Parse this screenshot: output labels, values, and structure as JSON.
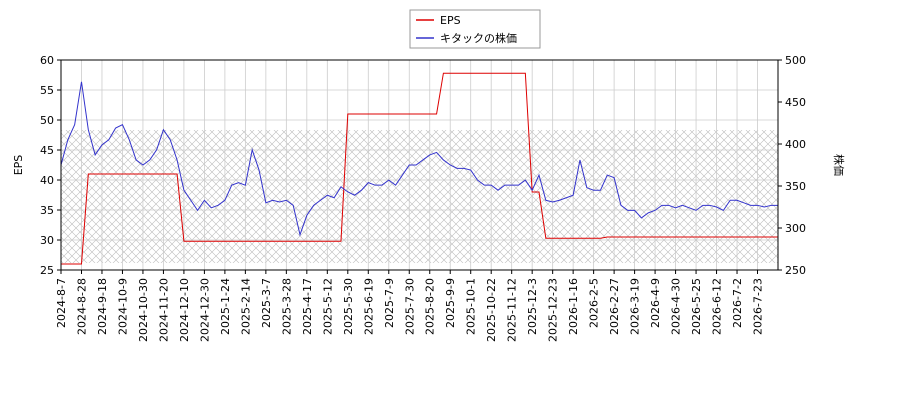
{
  "chart_data": {
    "type": "line",
    "ylabel": "EPS",
    "y2label": "株価",
    "categories": [
      "2024-8-7",
      null,
      null,
      "2024-8-28",
      null,
      null,
      "2024-9-18",
      null,
      null,
      "2024-10-9",
      null,
      null,
      "2024-10-30",
      null,
      null,
      "2024-11-20",
      null,
      null,
      "2024-12-10",
      null,
      null,
      "2024-12-30",
      null,
      null,
      "2025-1-24",
      null,
      null,
      "2025-2-14",
      null,
      null,
      "2025-3-7",
      null,
      null,
      "2025-3-28",
      null,
      null,
      "2025-4-17",
      null,
      null,
      "2025-5-12",
      null,
      null,
      "2025-5-30",
      null,
      null,
      "2025-6-19",
      null,
      null,
      "2025-7-9",
      null,
      null,
      "2025-7-30",
      null,
      null,
      "2025-8-20",
      null,
      null,
      "2025-9-9",
      null,
      null,
      "2025-10-1",
      null,
      null,
      "2025-10-22",
      null,
      null,
      "2025-11-12",
      null,
      null,
      "2025-12-3",
      null,
      null,
      "2025-12-23",
      null,
      null,
      "2026-1-16",
      null,
      null,
      "2026-2-5",
      null,
      null,
      "2026-2-27",
      null,
      null,
      "2026-3-19",
      null,
      null,
      "2026-4-9",
      null,
      null,
      "2026-4-30",
      null,
      null,
      "2026-5-25",
      null,
      null,
      "2026-6-12",
      null,
      null,
      "2026-7-2",
      null,
      null,
      "2026-7-23",
      null,
      null,
      null
    ],
    "series": [
      {
        "name": "EPS",
        "color": "#dd0000",
        "values": [
          26,
          26,
          26,
          26,
          41,
          41,
          41,
          41,
          41,
          41,
          41,
          41,
          41,
          41,
          41,
          41,
          41,
          41,
          29.8,
          29.8,
          29.8,
          29.8,
          29.8,
          29.8,
          29.8,
          29.8,
          29.8,
          29.8,
          29.8,
          29.8,
          29.8,
          29.8,
          29.8,
          29.8,
          29.8,
          29.8,
          29.8,
          29.8,
          29.8,
          29.8,
          29.8,
          29.8,
          51,
          51,
          51,
          51,
          51,
          51,
          51,
          51,
          51,
          51,
          51,
          51,
          51,
          51,
          57.8,
          57.8,
          57.8,
          57.8,
          57.8,
          57.8,
          57.8,
          57.8,
          57.8,
          57.8,
          57.8,
          57.8,
          57.8,
          38,
          38,
          30.3,
          30.3,
          30.3,
          30.3,
          30.3,
          30.3,
          30.3,
          30.3,
          30.3,
          30.5,
          30.5,
          30.5,
          30.5,
          30.5,
          30.5,
          30.5,
          30.5,
          30.5,
          30.5,
          30.5,
          30.5,
          30.5,
          30.5,
          30.5,
          30.5,
          30.5,
          30.5,
          30.5,
          30.5,
          30.5,
          30.5,
          30.5,
          30.5,
          30.5,
          30.5
        ]
      },
      {
        "name": "キタックの株価",
        "color": "#3333cc",
        "axis": "y2",
        "values": [
          375,
          405,
          423,
          474,
          417,
          387,
          399,
          405,
          419,
          423,
          405,
          381,
          375,
          381,
          393,
          417,
          405,
          381,
          345,
          333,
          321,
          333,
          324,
          327,
          333,
          351,
          354,
          351,
          393,
          369,
          330,
          333,
          331,
          333,
          327,
          292,
          315,
          327,
          333,
          339,
          336,
          349,
          343,
          339,
          345,
          354,
          351,
          351,
          357,
          351,
          363,
          375,
          375,
          381,
          387,
          390,
          381,
          375,
          371,
          371,
          369,
          357,
          351,
          351,
          345,
          351,
          351,
          351,
          357,
          345,
          363,
          333,
          331,
          333,
          336,
          339,
          381,
          348,
          345,
          345,
          363,
          360,
          327,
          321,
          321,
          312,
          318,
          321,
          327,
          327,
          324,
          327,
          324,
          321,
          327,
          327,
          325,
          321,
          333,
          333,
          330,
          327,
          327,
          325,
          327,
          327
        ]
      }
    ],
    "ylim": [
      25,
      60
    ],
    "yticks": [
      25,
      30,
      35,
      40,
      45,
      50,
      55,
      60
    ],
    "y2lim": [
      250,
      500
    ],
    "y2ticks": [
      250,
      300,
      350,
      400,
      450,
      500
    ],
    "grid": true,
    "legend": "top"
  }
}
